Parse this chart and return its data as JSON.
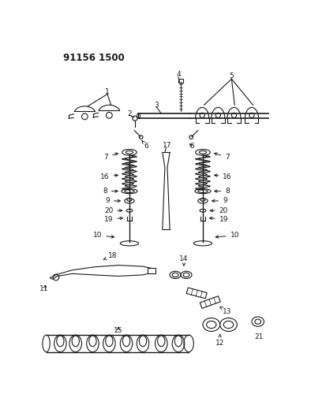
{
  "title": "91156 1500",
  "bg_color": "#ffffff",
  "fig_width": 3.94,
  "fig_height": 5.33,
  "dpi": 100,
  "dark": "#1a1a1a",
  "lw": 0.8
}
